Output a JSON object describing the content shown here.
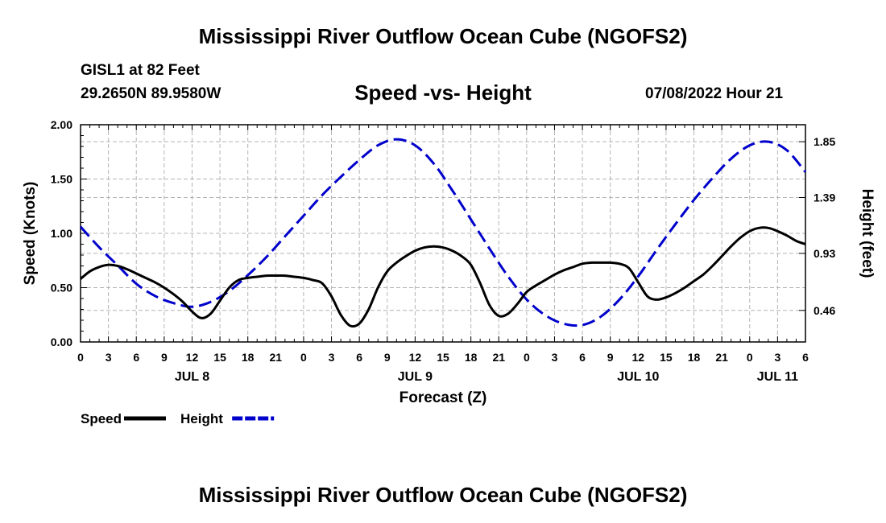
{
  "title": "Mississippi River Outflow Ocean Cube (NGOFS2)",
  "footer_title": "Mississippi River Outflow Ocean Cube (NGOFS2)",
  "station": {
    "name": "GISL1 at 82 Feet",
    "coords": "29.2650N  89.9580W"
  },
  "run_time": "07/08/2022 Hour 21",
  "chart_data": {
    "type": "line",
    "title": "Speed -vs- Height",
    "xlabel": "Forecast (Z)",
    "ylabel": "Speed (Knots)",
    "y2label": "Height (feet)",
    "ylim": [
      0,
      2
    ],
    "y2lim": [
      0.2,
      1.99
    ],
    "xlim": [
      0,
      78
    ],
    "y_ticks": [
      "0.00",
      "0.50",
      "1.00",
      "1.50",
      "2.00"
    ],
    "y_tick_values": [
      0,
      0.5,
      1,
      1.5,
      2
    ],
    "y2_ticks": [
      "0.46",
      "0.93",
      "1.39",
      "1.85"
    ],
    "y2_tick_values": [
      0.46,
      0.93,
      1.39,
      1.85
    ],
    "x_tick_labels": [
      "0",
      "3",
      "6",
      "9",
      "12",
      "15",
      "18",
      "21",
      "0",
      "3",
      "6",
      "9",
      "12",
      "15",
      "18",
      "21",
      "0",
      "3",
      "6",
      "9",
      "12",
      "15",
      "18",
      "21",
      "0",
      "3",
      "6"
    ],
    "day_labels": [
      {
        "label": "JUL 8",
        "at": 12
      },
      {
        "label": "JUL 9",
        "at": 36
      },
      {
        "label": "JUL 10",
        "at": 60
      },
      {
        "label": "JUL 11",
        "at": 75
      }
    ],
    "x_units": "hours since 07/08 00Z",
    "series": [
      {
        "name": "Speed",
        "color": "#000000",
        "axis": "left",
        "x": [
          0,
          1,
          2,
          3,
          4,
          5,
          6,
          7,
          8,
          9,
          10,
          11,
          12,
          13,
          14,
          15,
          16,
          17,
          18,
          19,
          20,
          21,
          22,
          23,
          24,
          25,
          26,
          27,
          28,
          29,
          30,
          31,
          32,
          33,
          34,
          35,
          36,
          37,
          38,
          39,
          40,
          41,
          42,
          43,
          44,
          45,
          46,
          47,
          48,
          49,
          50,
          51,
          52,
          53,
          54,
          55,
          56,
          57,
          58,
          59,
          60,
          61,
          62,
          63,
          64,
          65,
          66,
          67,
          68,
          69,
          70,
          71,
          72,
          73,
          74,
          75,
          76,
          77,
          78
        ],
        "values": [
          0.58,
          0.65,
          0.69,
          0.71,
          0.7,
          0.67,
          0.63,
          0.59,
          0.55,
          0.5,
          0.44,
          0.37,
          0.28,
          0.22,
          0.26,
          0.38,
          0.5,
          0.57,
          0.59,
          0.6,
          0.61,
          0.61,
          0.61,
          0.6,
          0.59,
          0.57,
          0.54,
          0.42,
          0.25,
          0.15,
          0.17,
          0.3,
          0.5,
          0.65,
          0.73,
          0.79,
          0.84,
          0.87,
          0.88,
          0.87,
          0.84,
          0.79,
          0.71,
          0.54,
          0.34,
          0.24,
          0.26,
          0.35,
          0.46,
          0.52,
          0.57,
          0.62,
          0.66,
          0.69,
          0.72,
          0.73,
          0.73,
          0.73,
          0.72,
          0.68,
          0.55,
          0.42,
          0.39,
          0.41,
          0.45,
          0.5,
          0.56,
          0.62,
          0.7,
          0.79,
          0.88,
          0.96,
          1.02,
          1.05,
          1.05,
          1.02,
          0.98,
          0.93,
          0.9
        ]
      },
      {
        "name": "Height",
        "color": "#0000cc",
        "axis": "right",
        "x": [
          0,
          2,
          4,
          6,
          8,
          10,
          12,
          14,
          16,
          18,
          20,
          22,
          24,
          26,
          28,
          30,
          32,
          34,
          36,
          38,
          40,
          42,
          44,
          46,
          48,
          50,
          52,
          54,
          56,
          58,
          60,
          62,
          64,
          66,
          68,
          70,
          72,
          74,
          76,
          78
        ],
        "values": [
          1.15,
          0.98,
          0.83,
          0.68,
          0.58,
          0.52,
          0.49,
          0.53,
          0.62,
          0.75,
          0.9,
          1.07,
          1.24,
          1.41,
          1.56,
          1.7,
          1.82,
          1.87,
          1.82,
          1.67,
          1.45,
          1.21,
          0.97,
          0.74,
          0.55,
          0.42,
          0.35,
          0.34,
          0.41,
          0.55,
          0.74,
          0.96,
          1.17,
          1.37,
          1.55,
          1.71,
          1.82,
          1.85,
          1.78,
          1.6
        ]
      }
    ],
    "legend": [
      {
        "name": "Speed",
        "color": "#000000",
        "dash": false
      },
      {
        "name": "Height",
        "color": "#0000cc",
        "dash": true
      }
    ]
  }
}
